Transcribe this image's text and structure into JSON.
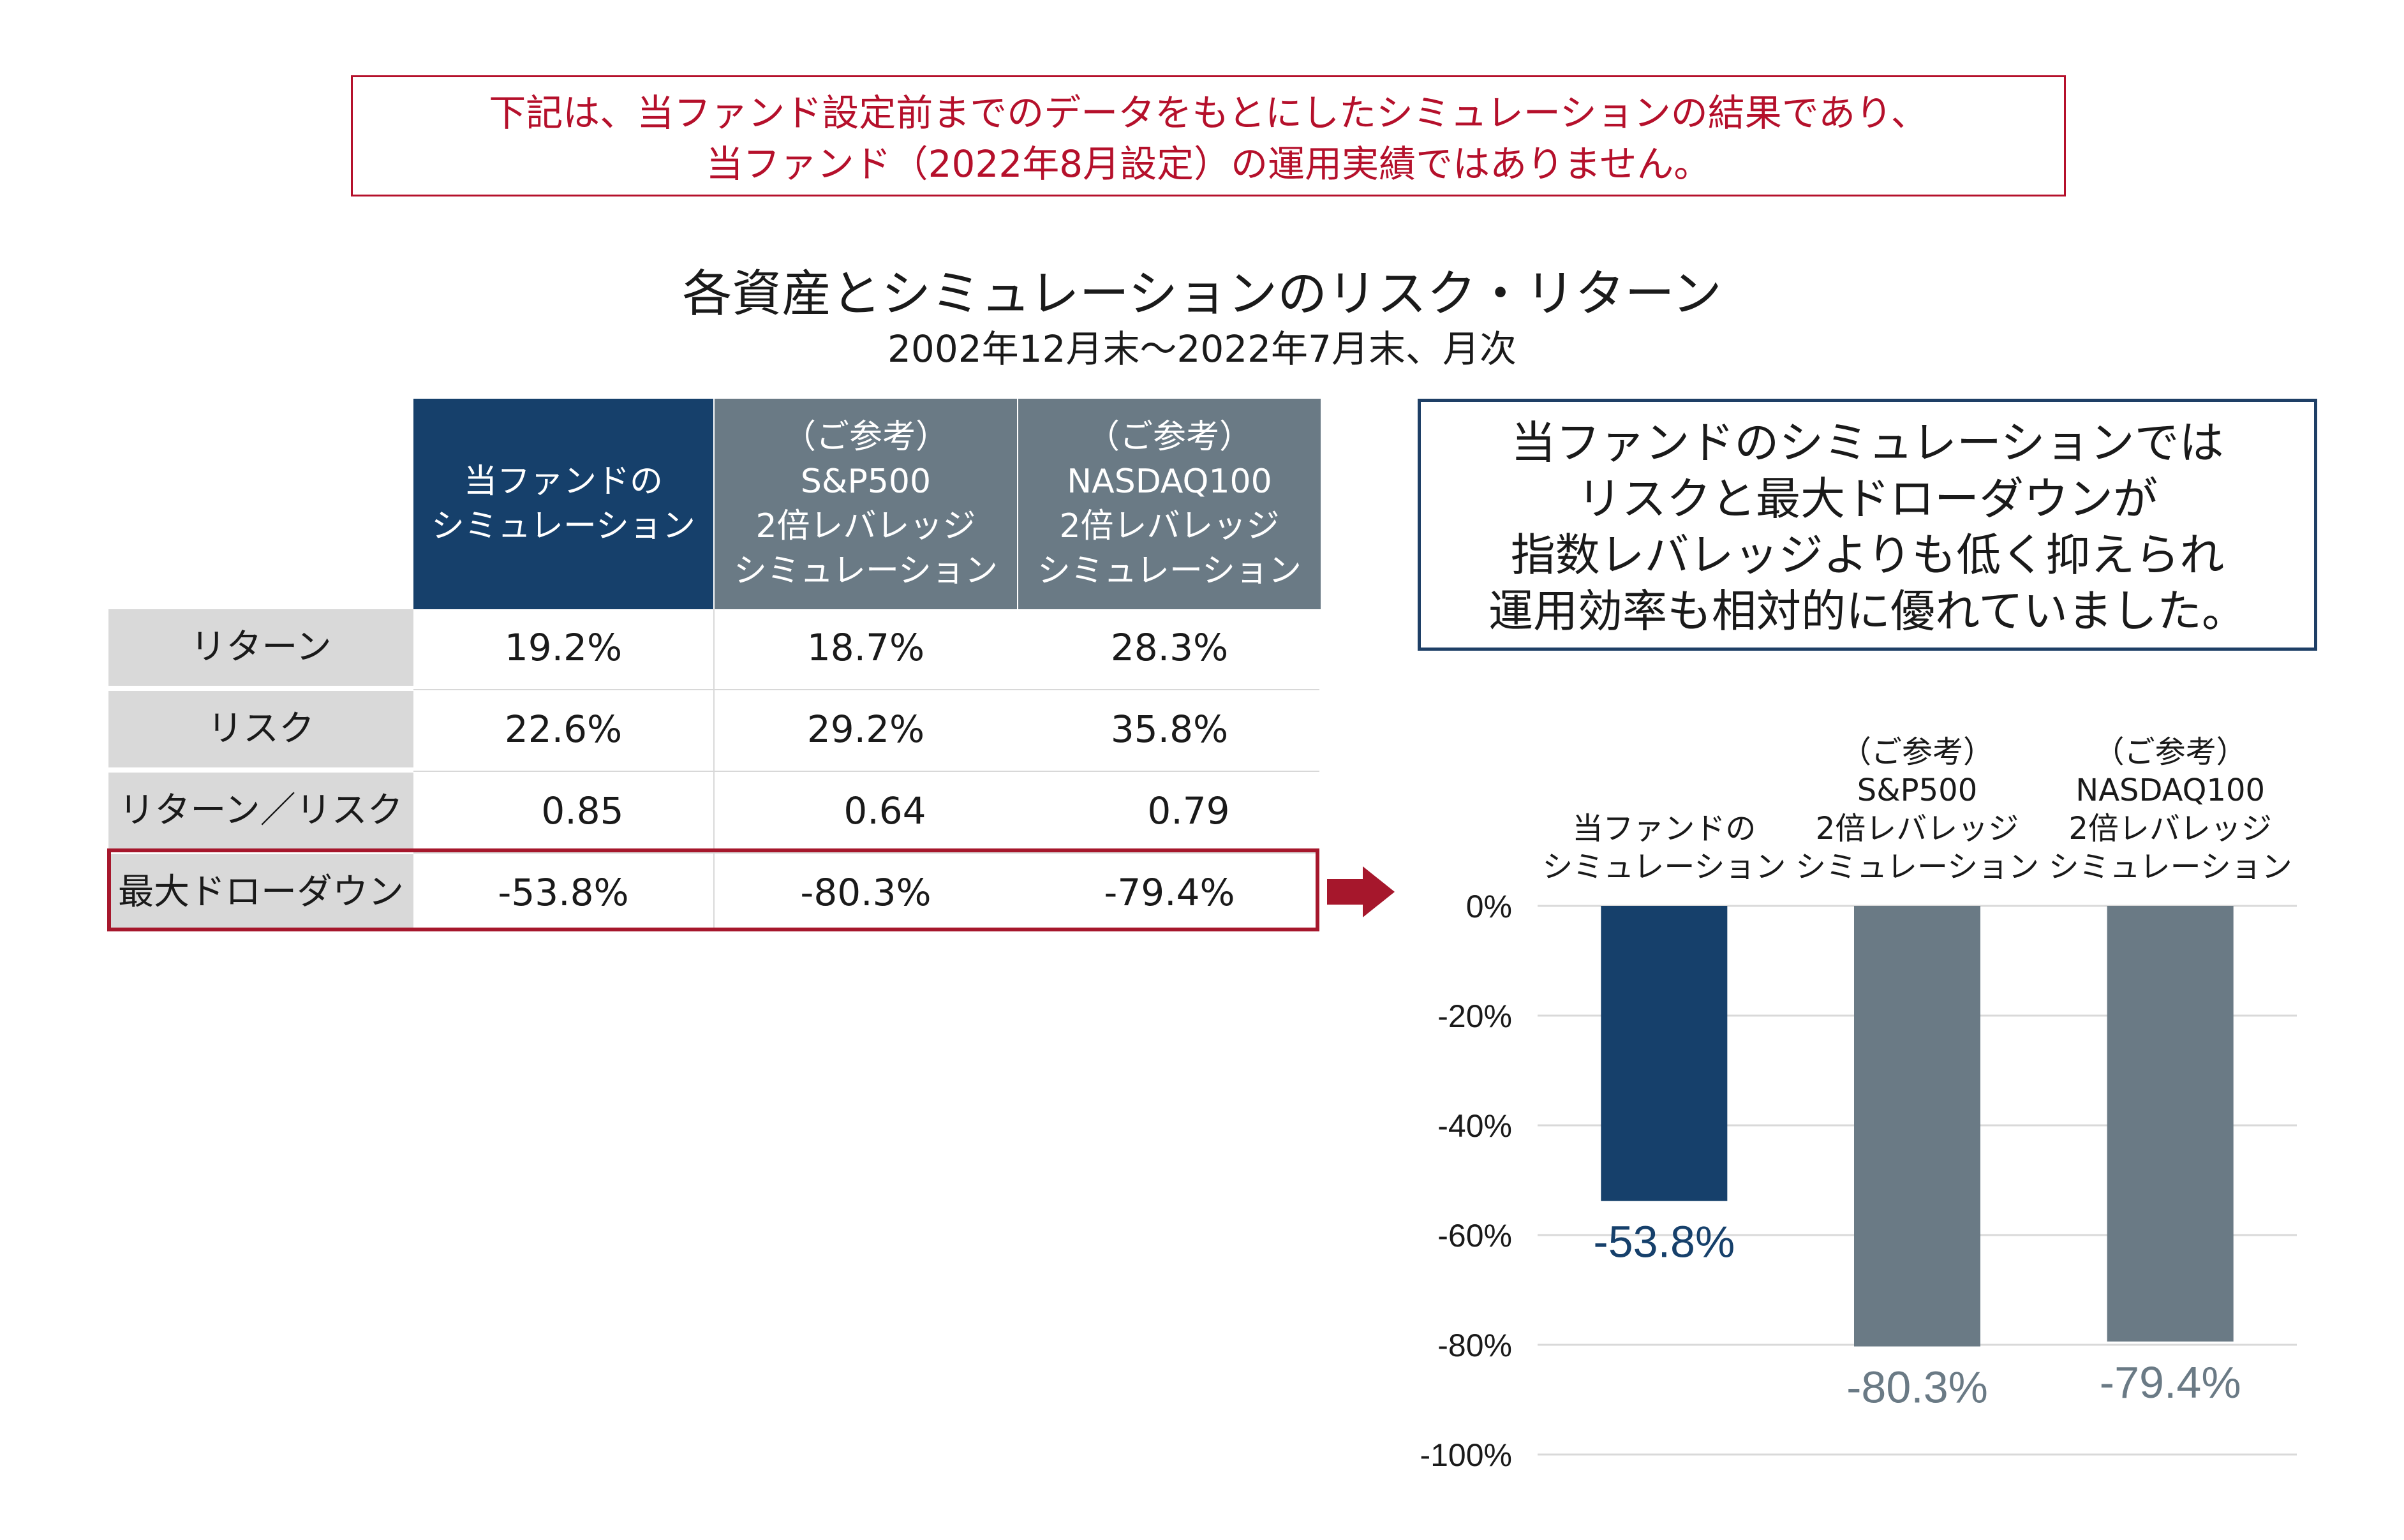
{
  "disclaimer": {
    "line1": "下記は、当ファンド設定前までのデータをもとにしたシミュレーションの結果であり、",
    "line2": "当ファンド（2022年8月設定）の運用実績ではありません。"
  },
  "title": "各資産とシミュレーションのリスク・リターン",
  "subtitle": "2002年12月末～2022年7月末、月次",
  "table": {
    "columns": [
      {
        "lines": [
          "当ファンドの",
          "シミュレーション"
        ]
      },
      {
        "lines": [
          "（ご参考）",
          "S&P500",
          "2倍レバレッジ",
          "シミュレーション"
        ]
      },
      {
        "lines": [
          "（ご参考）",
          "NASDAQ100",
          "2倍レバレッジ",
          "シミュレーション"
        ]
      }
    ],
    "rows": [
      {
        "label": "リターン",
        "values": [
          "19.2%",
          "18.7%",
          "28.3%"
        ]
      },
      {
        "label": "リスク",
        "values": [
          "22.6%",
          "29.2%",
          "35.8%"
        ]
      },
      {
        "label": "リターン／リスク",
        "values": [
          "0.85",
          "0.64",
          "0.79"
        ]
      },
      {
        "label": "最大ドローダウン",
        "values": [
          "-53.8%",
          "-80.3%",
          "-79.4%"
        ]
      }
    ]
  },
  "message": {
    "lines": [
      "当ファンドのシミュレーションでは",
      "リスクと最大ドローダウンが",
      "指数レバレッジよりも低く抑えられ",
      "運用効率も相対的に優れていました。"
    ]
  },
  "chart_data": {
    "type": "bar",
    "categories": [
      [
        "当ファンドの",
        "シミュレーション"
      ],
      [
        "（ご参考）",
        "S&P500",
        "2倍レバレッジ",
        "シミュレーション"
      ],
      [
        "（ご参考）",
        "NASDAQ100",
        "2倍レバレッジ",
        "シミュレーション"
      ]
    ],
    "values": [
      -53.8,
      -80.3,
      -79.4
    ],
    "data_labels": [
      "-53.8%",
      "-80.3%",
      "-79.4%"
    ],
    "bar_colors": [
      "#16406b",
      "#6a7a85",
      "#6a7a85"
    ],
    "ylim": [
      -100,
      0
    ],
    "yticks": [
      0,
      -20,
      -40,
      -60,
      -80,
      -100
    ],
    "ytick_labels": [
      "0%",
      "-20%",
      "-40%",
      "-60%",
      "-80%",
      "-100%"
    ],
    "grid": true
  }
}
